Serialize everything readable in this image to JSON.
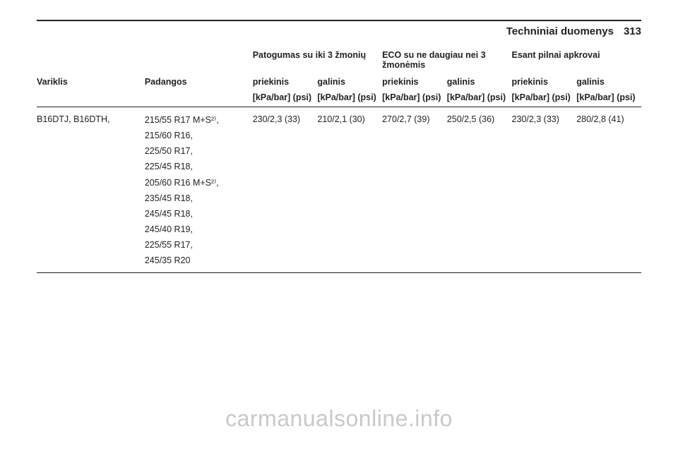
{
  "header": {
    "section": "Techniniai duomenys",
    "page": "313"
  },
  "table": {
    "group_headers": {
      "comfort": "Patogumas su iki 3 žmonių",
      "eco": "ECO su ne daugiau nei 3 žmonėmis",
      "full": "Esant pilnai apkrovai"
    },
    "col_headers": {
      "engine": "Variklis",
      "tires": "Padangos",
      "front": "priekinis",
      "rear": "galinis"
    },
    "unit_row": {
      "unit": "[kPa/bar] (psi)"
    },
    "engine": "B16DTJ, B16DTH,",
    "tires": [
      "215/55 R17 M+S²⁾,",
      "215/60 R16,",
      "225/50 R17,",
      "225/45 R18,",
      "205/60 R16 M+S²⁾,",
      "235/45 R18,",
      "245/45 R18,",
      "245/40 R19,",
      "225/55 R17,",
      "245/35 R20"
    ],
    "values": {
      "comfort_front": "230/2,3 (33)",
      "comfort_rear": "210/2,1 (30)",
      "eco_front": "270/2,7 (39)",
      "eco_rear": "250/2,5 (36)",
      "full_front": "230/2,3 (33)",
      "full_rear": "280/2,8 (41)"
    }
  },
  "watermark": "carmanualsonline.info"
}
